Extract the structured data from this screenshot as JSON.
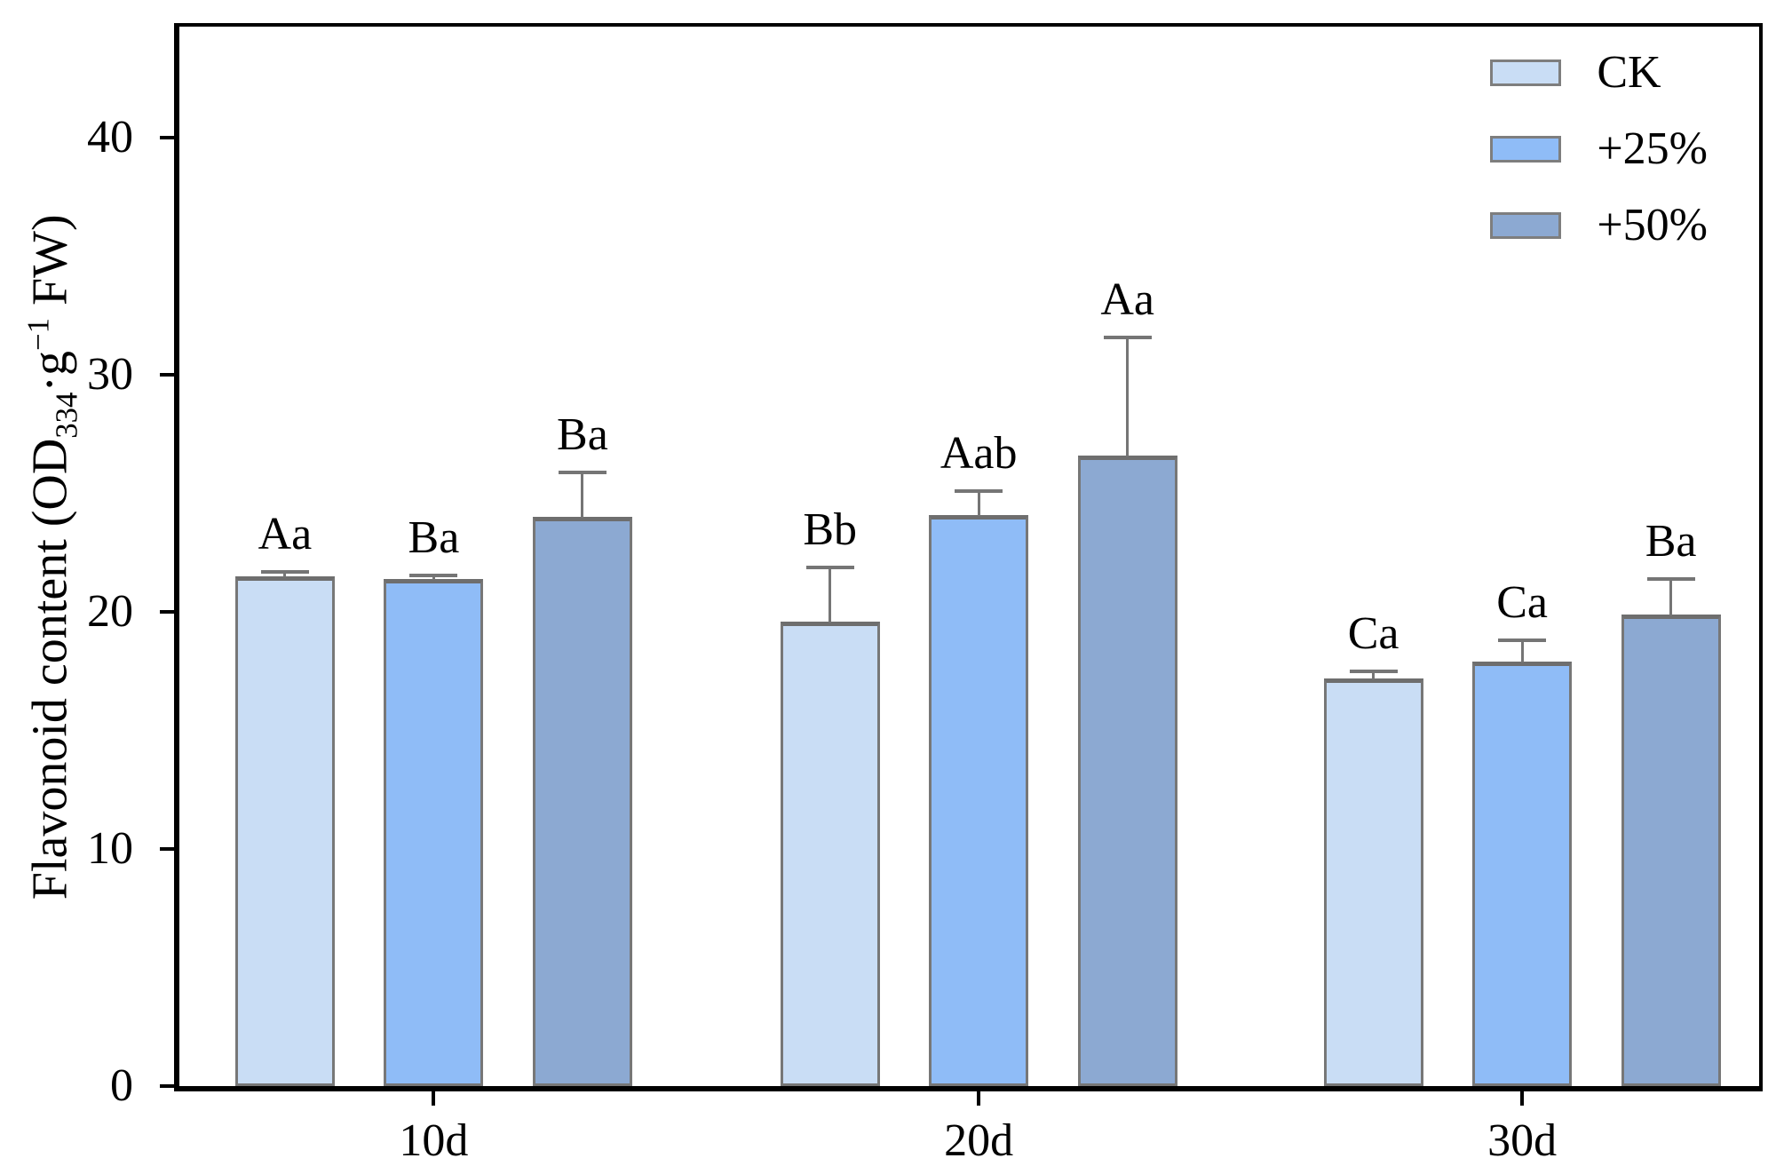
{
  "chart_data": {
    "type": "bar",
    "title": "",
    "categories": [
      "10d",
      "20d",
      "30d"
    ],
    "series": [
      {
        "name": "CK",
        "color": "#c9ddf5",
        "values": [
          21.5,
          19.6,
          17.2
        ],
        "errors_upper": [
          0.2,
          2.3,
          0.3
        ],
        "point_labels": [
          "Aa",
          "Bb",
          "Ca"
        ]
      },
      {
        "name": "+25%",
        "color": "#8fbcf7",
        "values": [
          21.4,
          24.1,
          17.9
        ],
        "errors_upper": [
          0.15,
          1.0,
          0.9
        ],
        "point_labels": [
          "Ba",
          "Aab",
          "Ca"
        ]
      },
      {
        "name": "+50%",
        "color": "#8ca9d2",
        "values": [
          24.0,
          26.6,
          19.9
        ],
        "errors_upper": [
          1.9,
          5.0,
          1.5
        ],
        "point_labels": [
          "Ba",
          "Aa",
          "Ba"
        ]
      }
    ],
    "xlabel": "",
    "ylabel": "Flavonoid content (OD334·g−1 FW)",
    "ylim": [
      0,
      44.7
    ],
    "yticks": [
      0,
      10,
      20,
      30,
      40
    ],
    "grid": false,
    "legend_position": "top-right",
    "bar_border_color": "#777777",
    "error_bar_color": "#757575",
    "frame_color": "#000000"
  },
  "y_axis_label_parts": {
    "prefix": "Flavonoid content (OD",
    "sub": "334",
    "mid": "·g",
    "sup": "−1",
    "suffix": " FW)"
  },
  "legend": {
    "items": [
      {
        "label": "CK"
      },
      {
        "label": "+25%"
      },
      {
        "label": "+50%"
      }
    ]
  }
}
